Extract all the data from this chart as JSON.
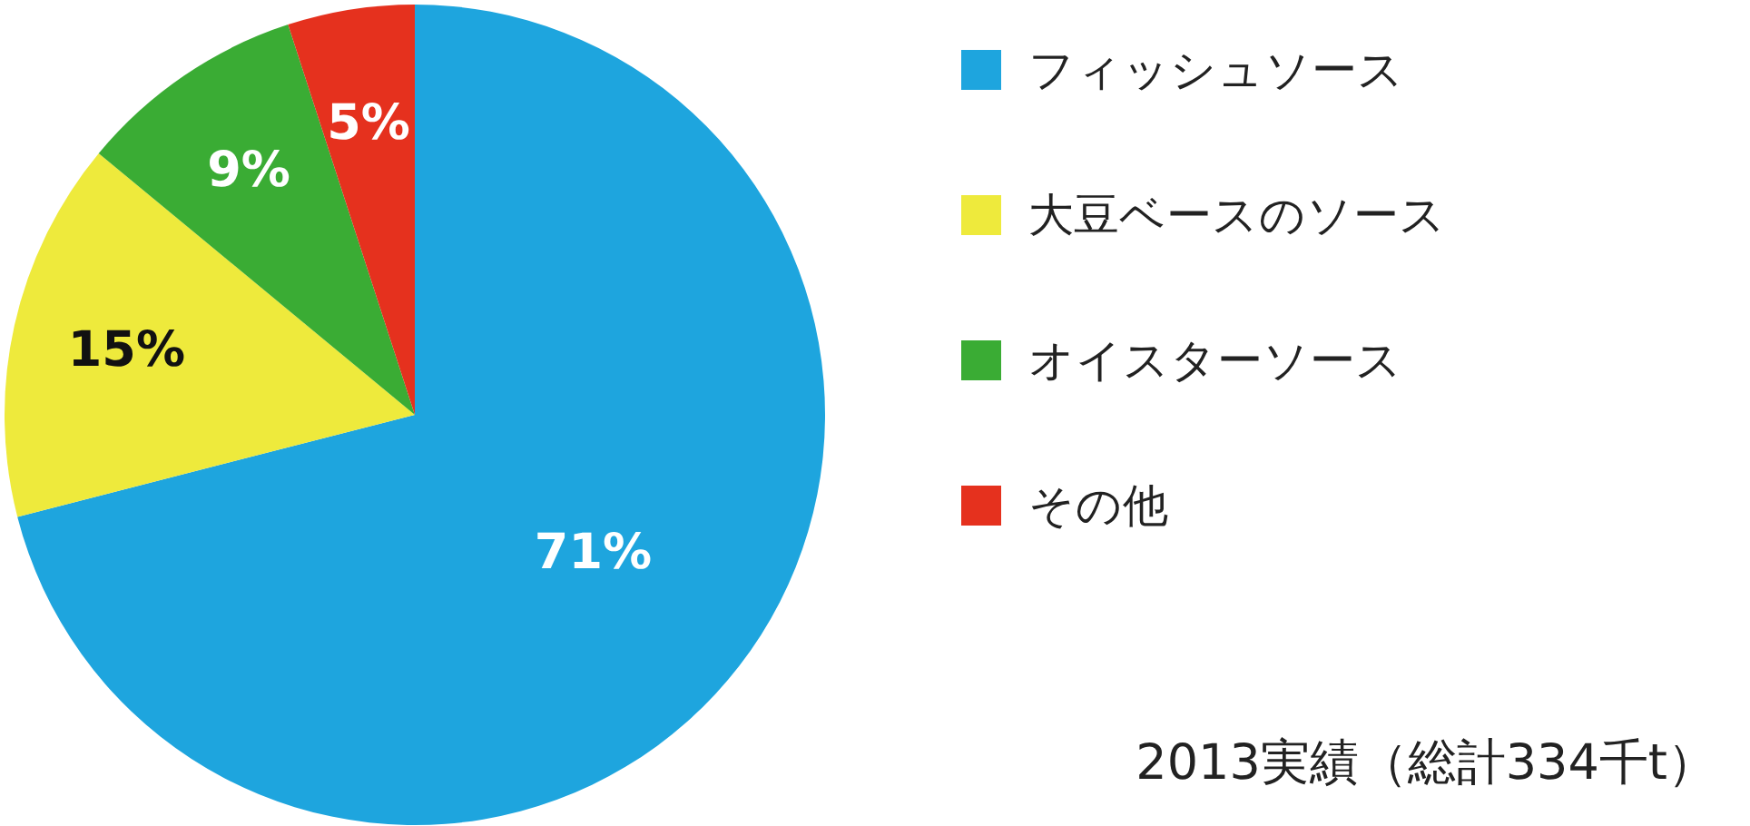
{
  "chart_data": {
    "type": "pie",
    "categories": [
      "フィッシュソース",
      "大豆ベースのソース",
      "オイスターソース",
      "その他"
    ],
    "values": [
      71,
      15,
      9,
      5
    ],
    "colors": [
      "#1ea5de",
      "#eeea3c",
      "#3aac34",
      "#e5311e"
    ],
    "value_labels": [
      "71%",
      "15%",
      "9%",
      "5%"
    ],
    "legend": "right",
    "annotations": [
      "2013実績（総計334千t）"
    ]
  }
}
